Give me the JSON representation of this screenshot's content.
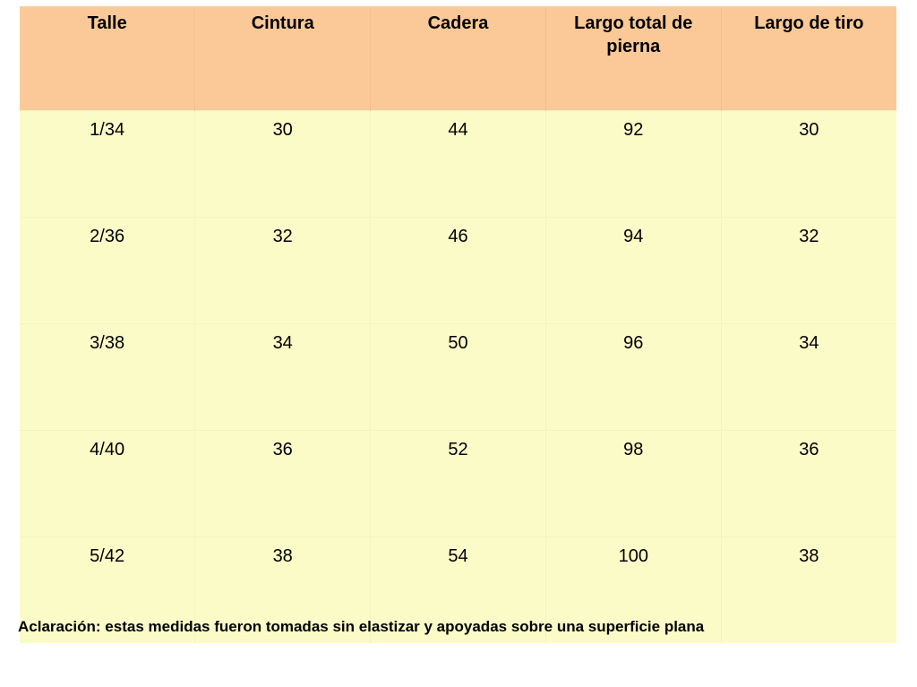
{
  "table": {
    "headers": [
      "Talle",
      "Cintura",
      "Cadera",
      "Largo total de pierna",
      "Largo de tiro"
    ],
    "rows": [
      [
        "1/34",
        "30",
        "44",
        "92",
        "30"
      ],
      [
        "2/36",
        "32",
        "46",
        "94",
        "32"
      ],
      [
        "3/38",
        "34",
        "50",
        "96",
        "34"
      ],
      [
        "4/40",
        "36",
        "52",
        "98",
        "36"
      ],
      [
        "5/42",
        "38",
        "54",
        "100",
        "38"
      ]
    ]
  },
  "note": "Aclaración: estas medidas fueron tomadas sin elastizar y apoyadas sobre una superficie plana",
  "colors": {
    "header_bg": "#fbc997",
    "body_bg": "#fbfbc8"
  }
}
